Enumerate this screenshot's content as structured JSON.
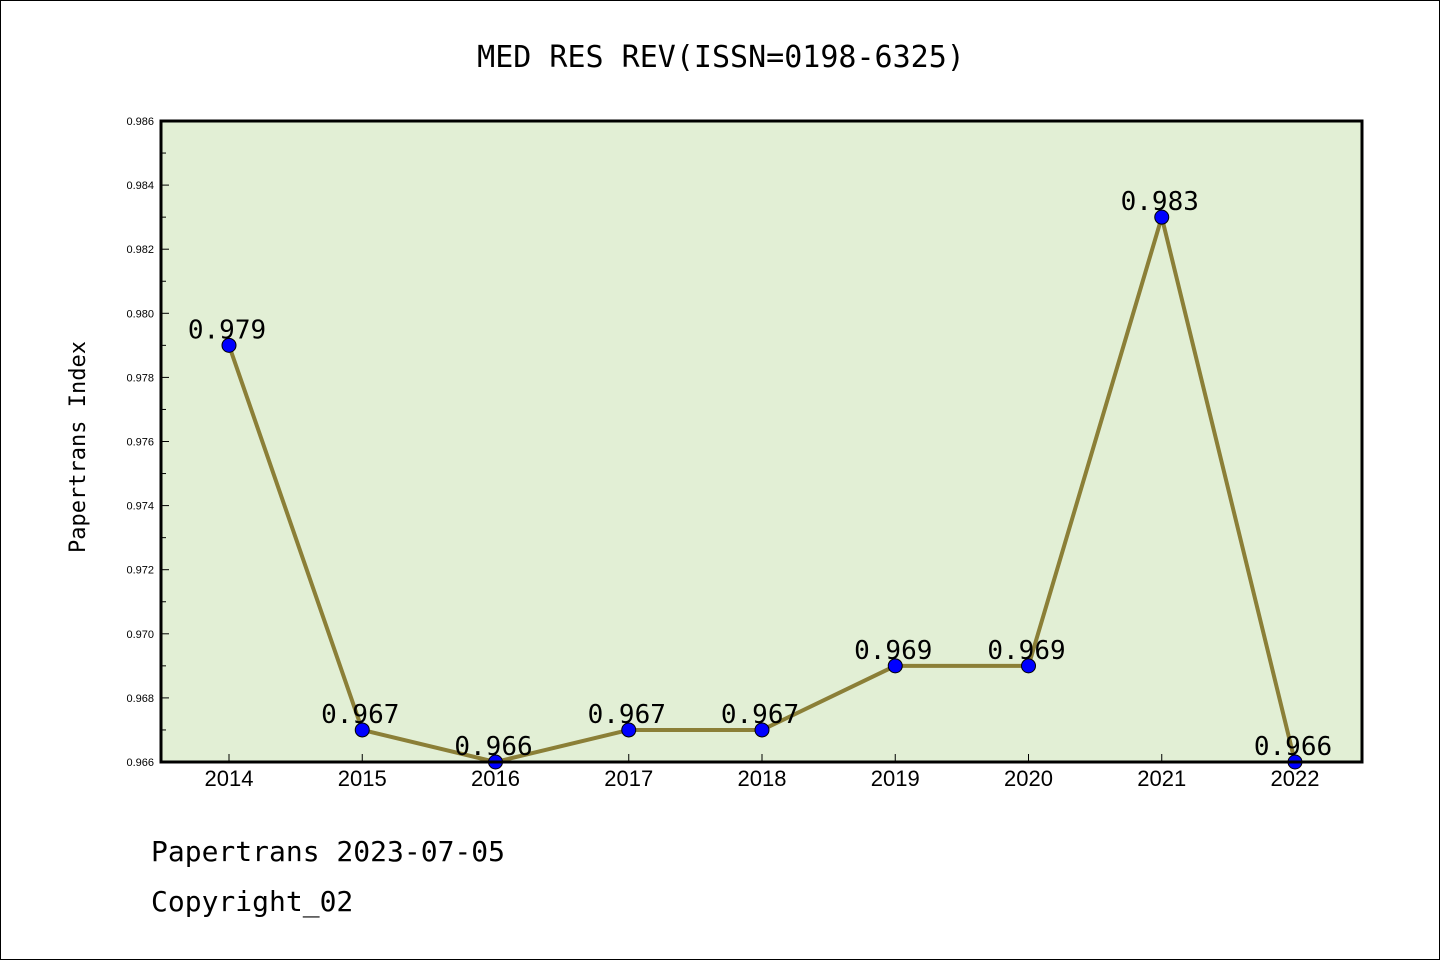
{
  "footer": {
    "line1": "Papertrans 2023-07-05",
    "line2": "Copyright_02"
  },
  "colors": {
    "plot_bg": "#e2efd5",
    "line": "#8b7f37",
    "marker": "#0000ff"
  },
  "chart_data": {
    "type": "line",
    "title": "MED RES REV(ISSN=0198-6325)",
    "xlabel": "",
    "ylabel": "Papertrans Index",
    "categories": [
      "2014",
      "2015",
      "2016",
      "2017",
      "2018",
      "2019",
      "2020",
      "2021",
      "2022"
    ],
    "series": [
      {
        "name": "Papertrans Index",
        "values": [
          0.979,
          0.967,
          0.966,
          0.967,
          0.967,
          0.969,
          0.969,
          0.983,
          0.966
        ],
        "labels": [
          "0.979",
          "0.967",
          "0.966",
          "0.967",
          "0.967",
          "0.969",
          "0.969",
          "0.983",
          "0.966"
        ]
      }
    ],
    "ylim": [
      0.966,
      0.986
    ],
    "yticks": [
      "0.966",
      "0.968",
      "0.970",
      "0.972",
      "0.974",
      "0.976",
      "0.978",
      "0.980",
      "0.982",
      "0.984",
      "0.986"
    ],
    "grid": false
  }
}
